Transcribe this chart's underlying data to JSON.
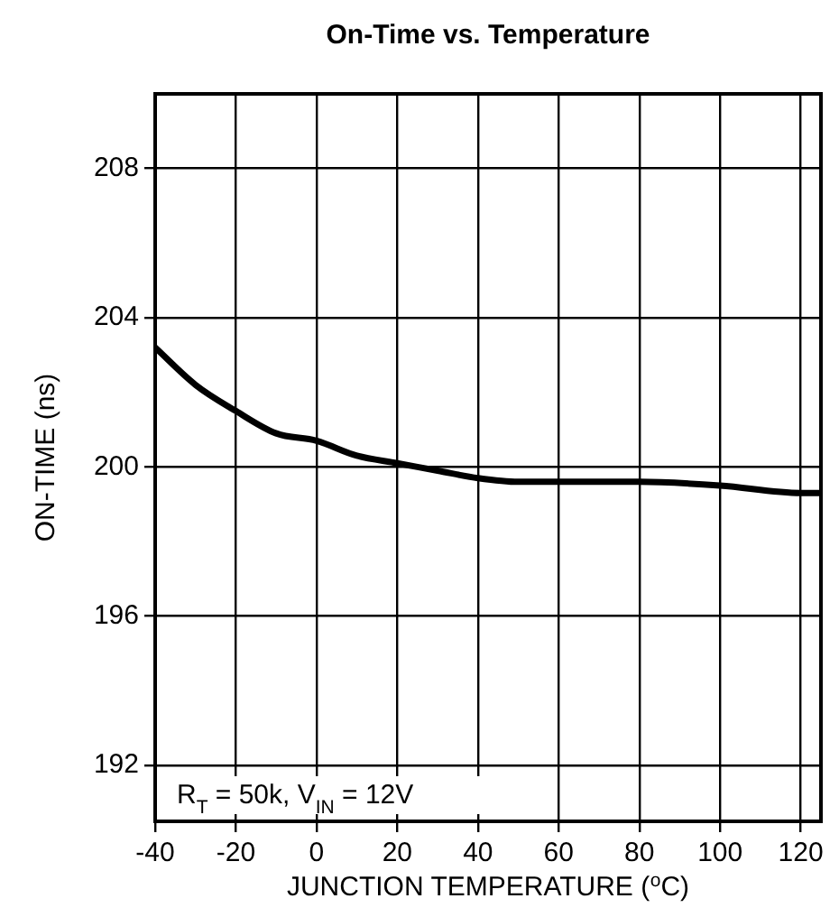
{
  "chart_data": {
    "type": "line",
    "title": "On-Time vs. Temperature",
    "xlabel": "JUNCTION TEMPERATURE ($^{o}$C)",
    "ylabel": "ON-TIME (ns)",
    "x": [
      -40,
      -30,
      -20,
      -10,
      0,
      10,
      20,
      30,
      40,
      50,
      60,
      80,
      100,
      120,
      125
    ],
    "series": [
      {
        "color": "#000000",
        "values": [
          203.2,
          202.2,
          201.5,
          200.9,
          200.7,
          200.3,
          200.1,
          199.9,
          199.7,
          199.6,
          199.6,
          199.6,
          199.5,
          199.3,
          199.3
        ]
      }
    ],
    "xlim": [
      -40,
      125
    ],
    "xticks": [
      -40,
      -20,
      0,
      20,
      40,
      60,
      80,
      100,
      120
    ],
    "ylim": [
      190.5,
      210
    ],
    "yticks": [
      192,
      196,
      200,
      204,
      208
    ],
    "grid": true,
    "legend": false,
    "marker": "none",
    "line_style": "solid",
    "annotations": [
      "R$_{T}$ = 50k, V$_{IN}$ = 12V"
    ]
  }
}
